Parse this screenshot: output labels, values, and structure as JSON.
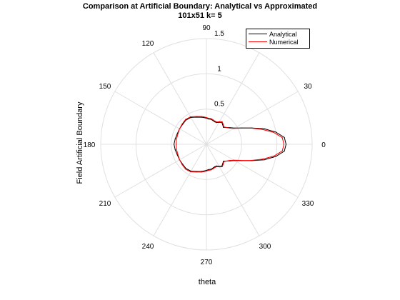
{
  "chart_data": {
    "type": "line",
    "subtype": "polar",
    "title": "Comparison at Artificial Boundary: Analytical vs Approximated",
    "subtitle": "101x51    k= 5",
    "xlabel": "theta",
    "ylabel": "Field Artificial Boundary",
    "angle_unit": "degrees",
    "angle_ticks": [
      0,
      30,
      60,
      90,
      120,
      150,
      180,
      210,
      240,
      270,
      300,
      330
    ],
    "angle_tick_labels": [
      "0",
      "30",
      "",
      "90",
      "120",
      "150",
      "180",
      "210",
      "240",
      "270",
      "300",
      "330"
    ],
    "rlim": [
      0,
      1.5
    ],
    "r_ticks": [
      0.5,
      1,
      1.5
    ],
    "r_tick_labels": [
      "0.5",
      "1",
      "1.5"
    ],
    "grid": true,
    "legend_position": "top-right",
    "theta": [
      0,
      5,
      10,
      15,
      20,
      25,
      30,
      35,
      40,
      45,
      50,
      55,
      60,
      65,
      70,
      75,
      80,
      85,
      90,
      95,
      100,
      110,
      120,
      130,
      140,
      150,
      160,
      170,
      180,
      190,
      200,
      210,
      220,
      230,
      240,
      250,
      260,
      265,
      270,
      275,
      280,
      285,
      290,
      295,
      300,
      305,
      310,
      315,
      320,
      325,
      330,
      335,
      340,
      345,
      350,
      355,
      360
    ],
    "series": [
      {
        "name": "Analytical",
        "color": "#000000",
        "r": [
          1.13,
          1.11,
          1.0,
          0.85,
          0.68,
          0.55,
          0.46,
          0.41,
          0.37,
          0.34,
          0.36,
          0.38,
          0.36,
          0.34,
          0.34,
          0.35,
          0.36,
          0.36,
          0.37,
          0.38,
          0.39,
          0.41,
          0.44,
          0.45,
          0.44,
          0.44,
          0.44,
          0.45,
          0.46,
          0.45,
          0.44,
          0.44,
          0.44,
          0.45,
          0.44,
          0.41,
          0.39,
          0.38,
          0.37,
          0.36,
          0.36,
          0.35,
          0.34,
          0.34,
          0.36,
          0.38,
          0.36,
          0.34,
          0.37,
          0.41,
          0.46,
          0.55,
          0.68,
          0.85,
          1.0,
          1.11,
          1.13
        ]
      },
      {
        "name": "Numerical",
        "color": "#ff0000",
        "r": [
          1.1,
          1.08,
          0.97,
          0.82,
          0.67,
          0.54,
          0.45,
          0.4,
          0.37,
          0.35,
          0.37,
          0.39,
          0.37,
          0.35,
          0.35,
          0.36,
          0.37,
          0.37,
          0.38,
          0.39,
          0.4,
          0.42,
          0.45,
          0.46,
          0.45,
          0.44,
          0.43,
          0.43,
          0.43,
          0.43,
          0.43,
          0.44,
          0.45,
          0.46,
          0.45,
          0.42,
          0.4,
          0.39,
          0.38,
          0.37,
          0.37,
          0.36,
          0.35,
          0.35,
          0.37,
          0.39,
          0.37,
          0.35,
          0.37,
          0.4,
          0.45,
          0.54,
          0.67,
          0.82,
          0.97,
          1.08,
          1.1
        ]
      }
    ]
  }
}
